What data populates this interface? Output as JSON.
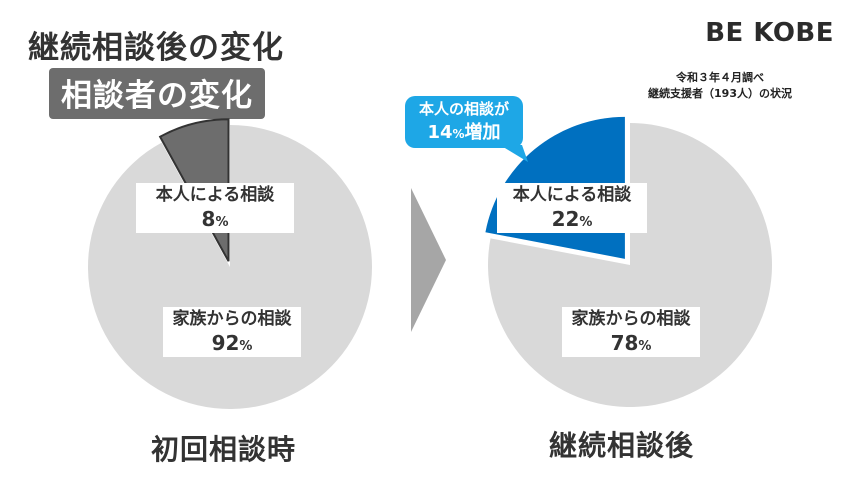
{
  "header": {
    "title": "継続相談後の変化",
    "subtitle": "相談者の変化",
    "logo": "BE KOBE",
    "note_line1": "令和３年４月調べ",
    "note_line2": "継続支援者（193人）の状況"
  },
  "callout": {
    "line1": "本人の相談が",
    "value": "14",
    "unit": "%",
    "suffix": "増加"
  },
  "chart_data": [
    {
      "type": "pie",
      "caption": "初回相談時",
      "slices": [
        {
          "label": "本人による相談",
          "value": 8,
          "unit": "%",
          "color": "#6d6d6d"
        },
        {
          "label": "家族からの相談",
          "value": 92,
          "unit": "%",
          "color": "#d9d9d9"
        }
      ]
    },
    {
      "type": "pie",
      "caption": "継続相談後",
      "slices": [
        {
          "label": "本人による相談",
          "value": 22,
          "unit": "%",
          "color": "#0070c0"
        },
        {
          "label": "家族からの相談",
          "value": 78,
          "unit": "%",
          "color": "#d9d9d9"
        }
      ]
    }
  ]
}
